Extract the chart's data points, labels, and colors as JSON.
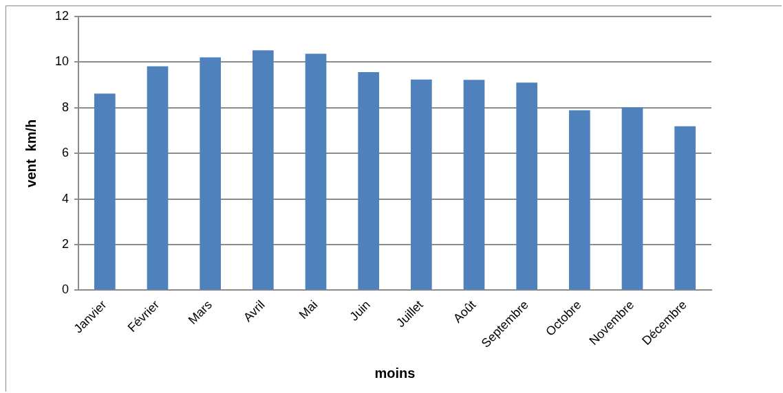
{
  "chart_data": {
    "type": "bar",
    "xlabel": "moins",
    "ylabel": "vent  km/h",
    "categories": [
      "Janvier",
      "Février",
      "Mars",
      "Avril",
      "Mai",
      "Juin",
      "Juillet",
      "Août",
      "Septembre",
      "Octobre",
      "Novembre",
      "Décembre"
    ],
    "values": [
      8.62,
      9.82,
      10.21,
      10.52,
      10.37,
      9.56,
      9.24,
      9.22,
      9.1,
      7.89,
      8.02,
      7.19
    ],
    "color": "#4f81bd",
    "ylim": [
      0,
      12
    ],
    "yticks": [
      0,
      2,
      4,
      6,
      8,
      10,
      12
    ],
    "grid": "y",
    "legend": false
  }
}
